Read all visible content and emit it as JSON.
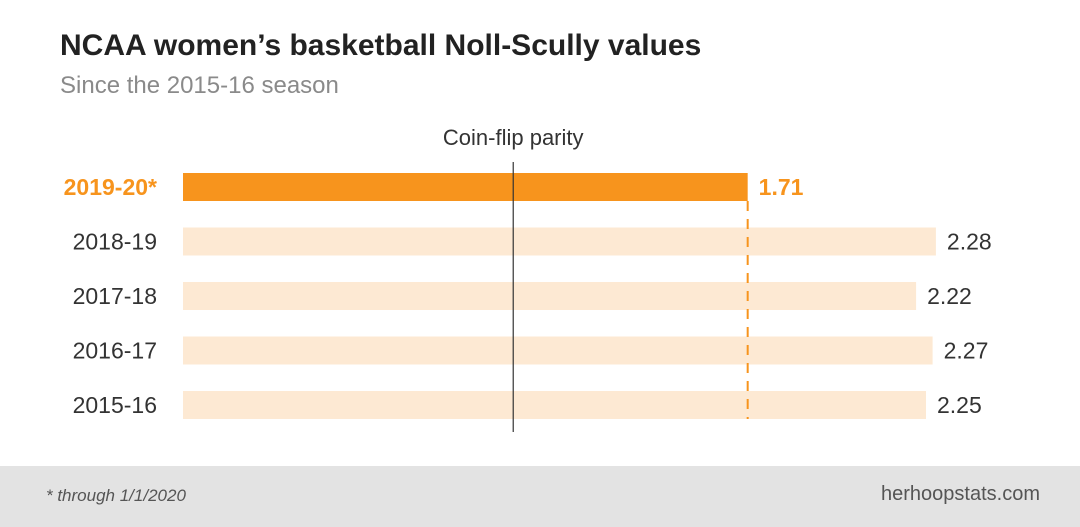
{
  "chart_data": {
    "type": "bar",
    "orientation": "horizontal",
    "title": "NCAA women’s basketball Noll-Scully values",
    "subtitle": "Since the 2015-16 season",
    "categories": [
      "2019-20*",
      "2018-19",
      "2017-18",
      "2016-17",
      "2015-16"
    ],
    "values": [
      1.71,
      2.28,
      2.22,
      2.27,
      2.25
    ],
    "value_labels": [
      "1.71",
      "2.28",
      "2.22",
      "2.27",
      "2.25"
    ],
    "highlighted_category": "2019-20*",
    "reference_line": {
      "label": "Coin-flip parity",
      "value": 1.0
    },
    "xlim": [
      0,
      2.25
    ],
    "grid": false,
    "colors": {
      "highlight": "#f7941d",
      "base": "#fde9d3",
      "text": "#333333",
      "ref_line": "#333333"
    }
  },
  "footer": {
    "note": "* through 1/1/2020",
    "source": "herhoopstats.com"
  }
}
